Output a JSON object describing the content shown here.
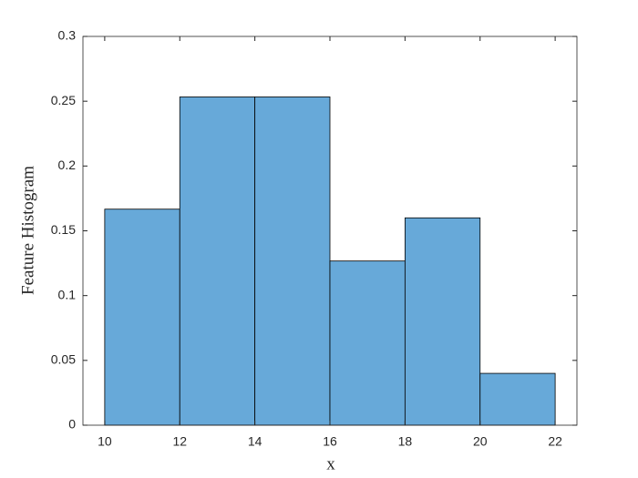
{
  "chart_data": {
    "type": "histogram",
    "xlabel": "x",
    "ylabel": "Feature Histogram",
    "bins": [
      10,
      12,
      14,
      16,
      18,
      20,
      22
    ],
    "values": [
      0.1667,
      0.2533,
      0.2533,
      0.1267,
      0.16,
      0.04
    ],
    "color": "#67a9d9",
    "edgecolor": "#000000",
    "xlim": [
      9.42,
      22.58
    ],
    "xticks": [
      10,
      12,
      14,
      16,
      18,
      20,
      22
    ],
    "ylim": [
      0,
      0.3
    ],
    "yticks": [
      0,
      0.05,
      0.1,
      0.15,
      0.2,
      0.25,
      0.3
    ]
  }
}
